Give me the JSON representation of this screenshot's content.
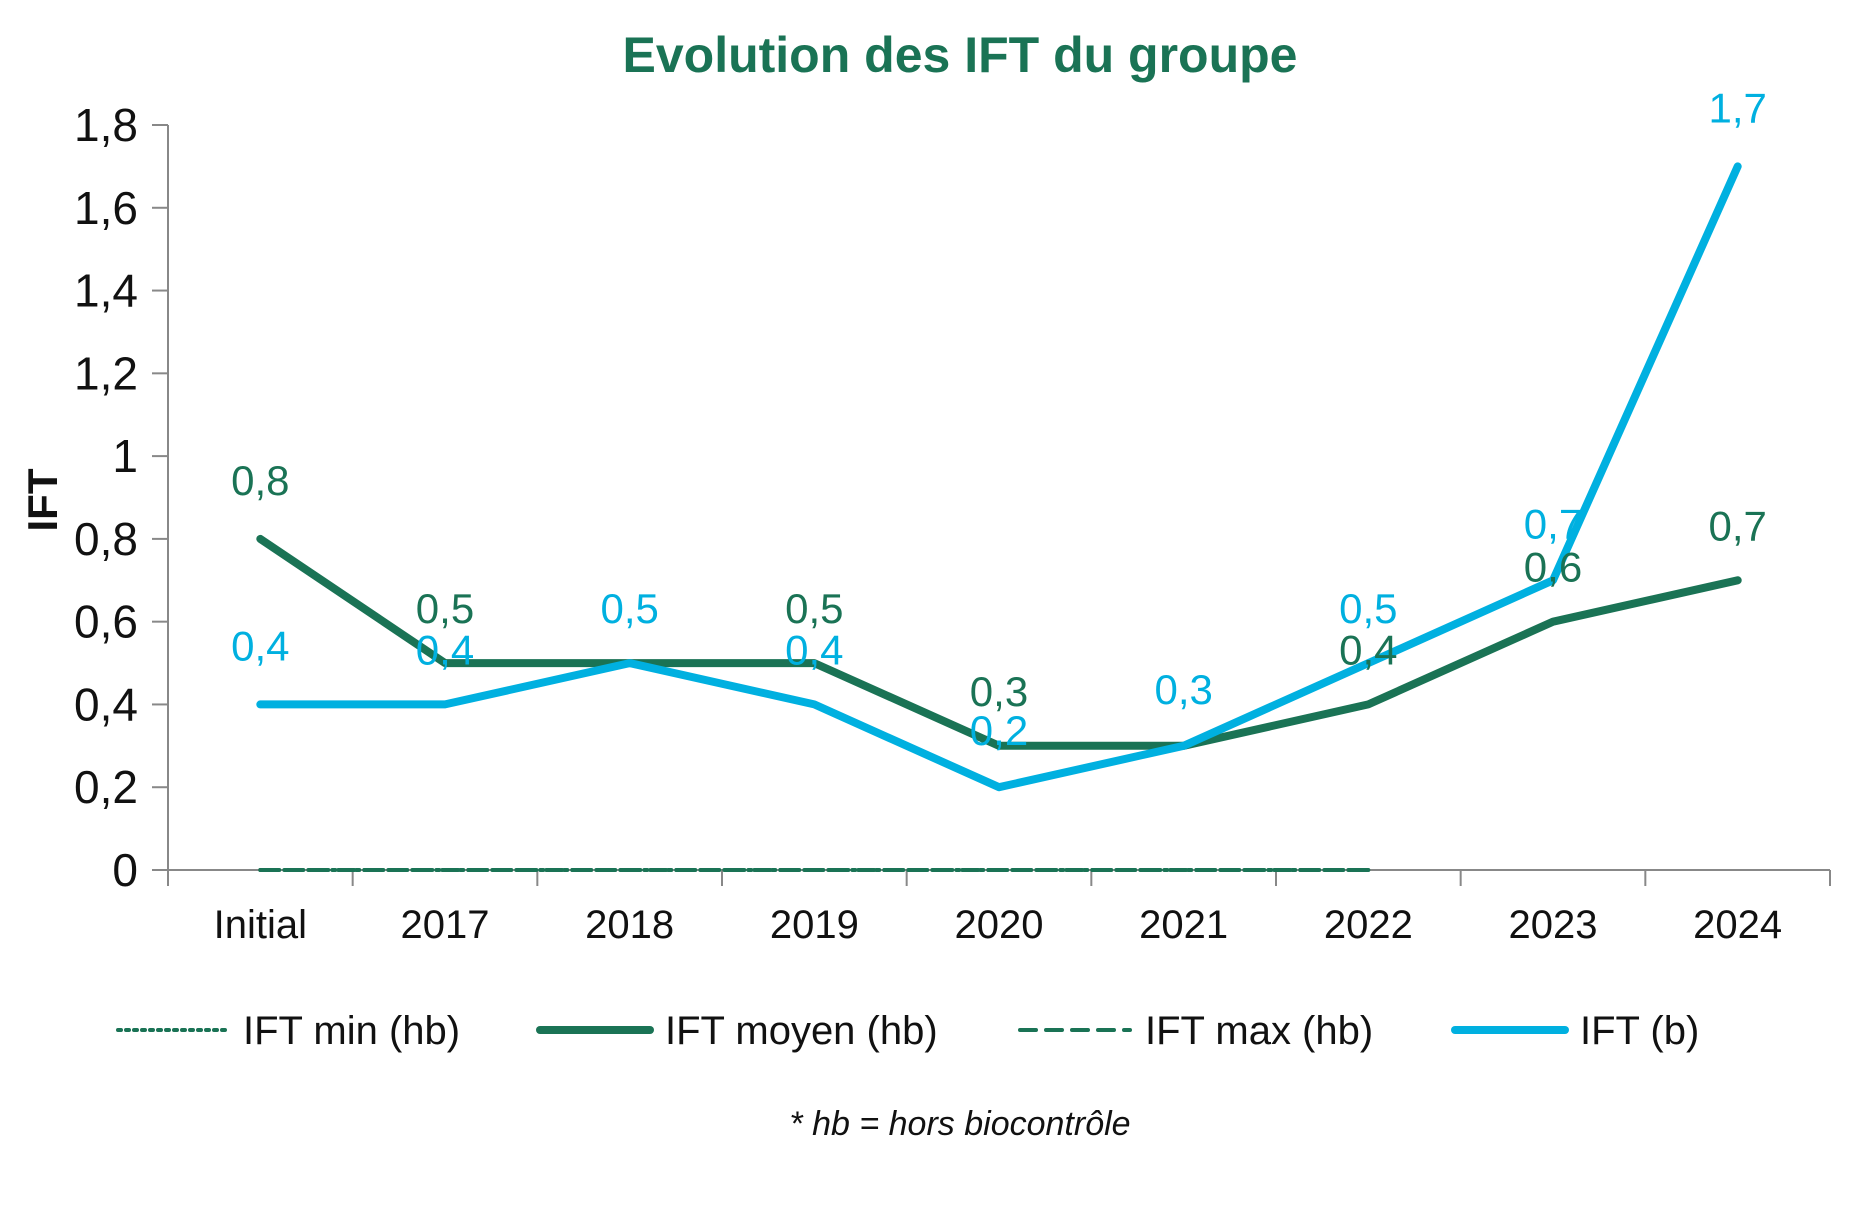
{
  "chart_data": {
    "type": "line",
    "title": "Evolution des IFT du groupe",
    "xlabel": "",
    "ylabel": "IFT",
    "ylim": [
      0,
      1.8
    ],
    "yticks": [
      "0",
      "0,2",
      "0,4",
      "0,6",
      "0,8",
      "1",
      "1,2",
      "1,4",
      "1,6",
      "1,8"
    ],
    "categories": [
      "Initial",
      "2017",
      "2018",
      "2019",
      "2020",
      "2021",
      "2022",
      "2023",
      "2024"
    ],
    "series": [
      {
        "name": "IFT min (hb)",
        "style": "dotted",
        "color": "#1a7355",
        "values": [
          0,
          0,
          0,
          0,
          0,
          0,
          0,
          null,
          null
        ],
        "labels": false
      },
      {
        "name": "IFT moyen (hb)",
        "style": "solid",
        "color": "#1a7355",
        "values": [
          0.8,
          0.5,
          0.5,
          0.5,
          0.3,
          0.3,
          0.4,
          0.6,
          0.7
        ],
        "labels": [
          "0,8",
          "0,5",
          "",
          "0,5",
          "0,3",
          "",
          "0,4",
          "0,6",
          "0,7"
        ]
      },
      {
        "name": "IFT max (hb)",
        "style": "dashed",
        "color": "#1a7355",
        "values": [
          0,
          0,
          0,
          0,
          0,
          0,
          0,
          null,
          null
        ],
        "labels": false
      },
      {
        "name": "IFT (b)",
        "style": "solid",
        "color": "#00b0e0",
        "values": [
          0.4,
          0.4,
          0.5,
          0.4,
          0.2,
          0.3,
          0.5,
          0.7,
          1.7
        ],
        "labels": [
          "0,4",
          "0,4",
          "0,5",
          "0,4",
          "0,2",
          "0,3",
          "0,5",
          "0,7",
          "1,7"
        ]
      }
    ],
    "legend_position": "bottom",
    "grid": false
  },
  "footnote": "* hb = hors biocontrôle"
}
